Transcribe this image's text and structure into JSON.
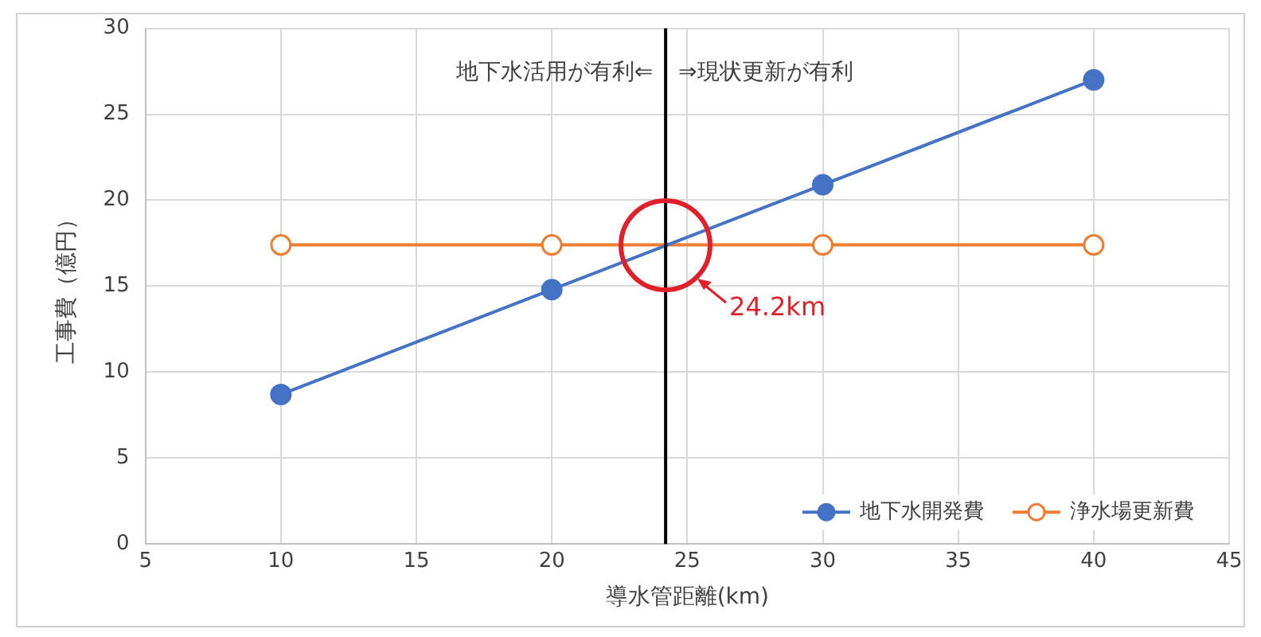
{
  "chart_data": {
    "type": "line",
    "xlabel": "導水管距離(km)",
    "ylabel": "工事費（億円）",
    "x": [
      10,
      20,
      30,
      40
    ],
    "series": [
      {
        "name": "地下水開発費",
        "color": "#4472c4",
        "values": [
          8.7,
          14.8,
          20.9,
          27.0
        ]
      },
      {
        "name": "浄水場更新費",
        "color": "#ed7d31",
        "values": [
          17.4,
          17.4,
          17.4,
          17.4
        ]
      }
    ],
    "xlim": [
      5,
      45
    ],
    "xticks": [
      5,
      10,
      15,
      20,
      25,
      30,
      35,
      40,
      45
    ],
    "ylim": [
      0,
      30
    ],
    "yticks": [
      0,
      5,
      10,
      15,
      20,
      25,
      30
    ],
    "ref_lines": [
      {
        "axis": "x",
        "value": 24.2,
        "color": "#000000"
      }
    ],
    "annotations": [
      "地下水活用が有利⇐",
      "⇒現状更新が有利",
      "24.2km"
    ],
    "grid": true,
    "legend": "bottom right",
    "marker": "circle"
  }
}
